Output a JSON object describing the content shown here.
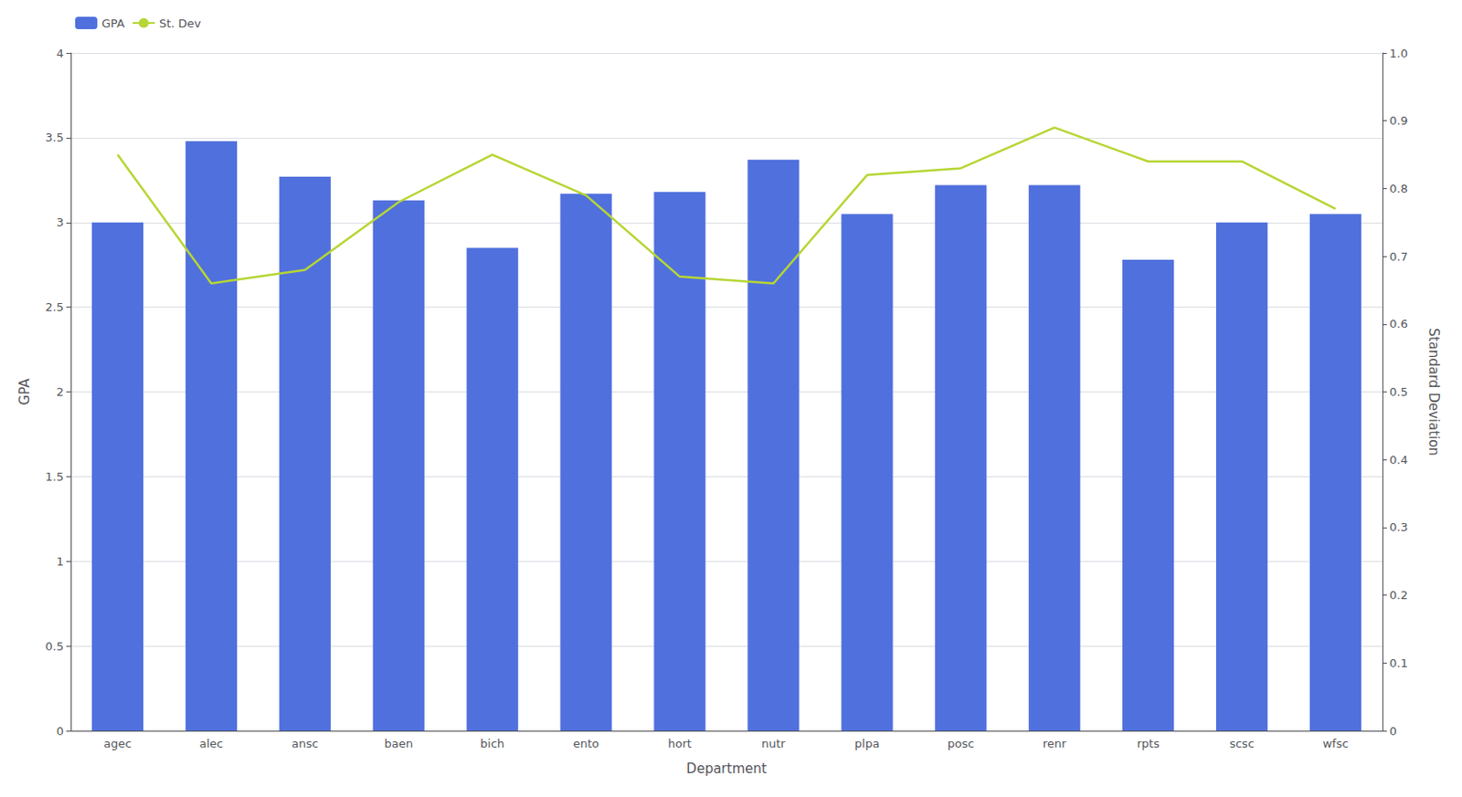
{
  "chart_data": {
    "type": "bar",
    "categories": [
      "agec",
      "alec",
      "ansc",
      "baen",
      "bich",
      "ento",
      "hort",
      "nutr",
      "plpa",
      "posc",
      "renr",
      "rpts",
      "scsc",
      "wfsc"
    ],
    "series": [
      {
        "name": "GPA",
        "type": "bar",
        "values": [
          3.0,
          3.48,
          3.27,
          3.13,
          2.85,
          3.17,
          3.18,
          3.37,
          3.05,
          3.22,
          3.22,
          2.78,
          3.0,
          3.05
        ]
      },
      {
        "name": "St. Dev",
        "type": "line",
        "axis": "y2",
        "values": [
          0.85,
          0.66,
          0.68,
          0.78,
          0.85,
          0.79,
          0.67,
          0.66,
          0.82,
          0.83,
          0.89,
          0.84,
          0.84,
          0.77
        ]
      }
    ],
    "xlabel": "Department",
    "ylabel": "GPA",
    "y2label": "Standard Deviation",
    "ylim": [
      0,
      4
    ],
    "yticks": [
      0,
      0.5,
      1,
      1.5,
      2,
      2.5,
      3,
      3.5,
      4
    ],
    "y2lim": [
      0,
      1
    ],
    "y2ticks": [
      0,
      0.1,
      0.2,
      0.3,
      0.4,
      0.5,
      0.6,
      0.7,
      0.8,
      0.9,
      {
        "value": 1,
        "label": "1.0"
      }
    ],
    "grid": true,
    "legend": "upper left"
  }
}
